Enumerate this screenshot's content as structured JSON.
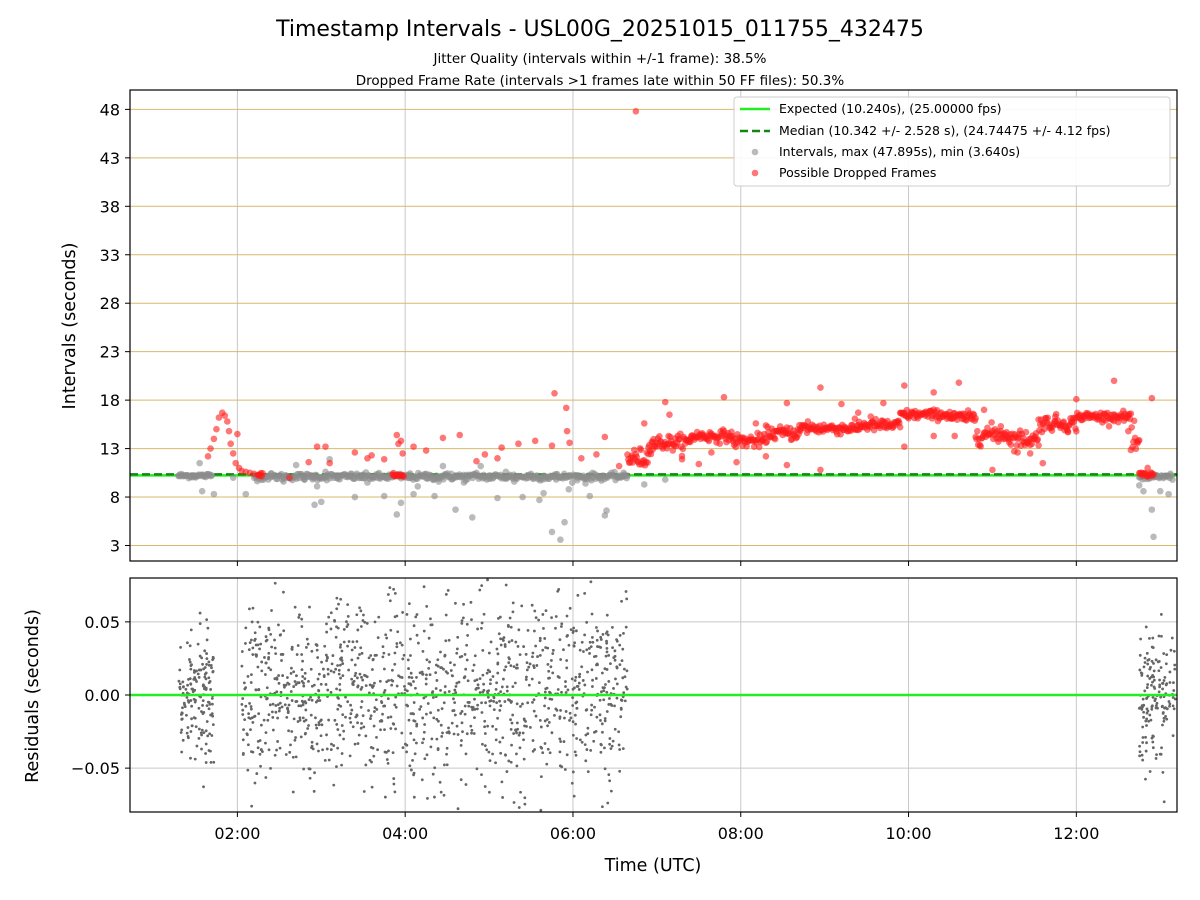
{
  "colors": {
    "expected": "#22ee22",
    "median": "#118811",
    "intervals": "#8c8c8c",
    "dropped": "#ff1a1a",
    "residual_points": "#666666",
    "hgrid_top": "#d9b96e",
    "vgrid": "#c8c8c8"
  },
  "chart_data": {
    "type": "scatter",
    "title": "Timestamp Intervals - USL00G_20251015_011755_432475",
    "subtitle_1": "Jitter Quality (intervals within +/-1 frame): 38.5%",
    "subtitle_2": "Dropped Frame Rate (intervals >1 frames late within 50 FF files): 50.3%",
    "xlabel": "Time (UTC)",
    "x_unit": "hours UTC",
    "xlim": [
      0.72,
      13.2
    ],
    "x_ticks": [
      {
        "value": 2,
        "label": "02:00"
      },
      {
        "value": 4,
        "label": "04:00"
      },
      {
        "value": 6,
        "label": "06:00"
      },
      {
        "value": 8,
        "label": "08:00"
      },
      {
        "value": 10,
        "label": "10:00"
      },
      {
        "value": 12,
        "label": "12:00"
      }
    ],
    "top": {
      "ylabel": "Intervals (seconds)",
      "ylim": [
        1.4,
        50.0
      ],
      "y_ticks": [
        {
          "value": 3,
          "label": "3"
        },
        {
          "value": 8,
          "label": "8"
        },
        {
          "value": 13,
          "label": "13"
        },
        {
          "value": 18,
          "label": "18"
        },
        {
          "value": 23,
          "label": "23"
        },
        {
          "value": 28,
          "label": "28"
        },
        {
          "value": 33,
          "label": "33"
        },
        {
          "value": 38,
          "label": "38"
        },
        {
          "value": 43,
          "label": "43"
        },
        {
          "value": 48,
          "label": "48"
        }
      ],
      "expected": 10.24,
      "median": 10.342,
      "legend": [
        {
          "label": "Expected (10.240s), (25.00000 fps)",
          "kind": "line-solid"
        },
        {
          "label": "Median (10.342 +/- 2.528 s), (24.74475 +/- 4.12 fps)",
          "kind": "line-dashed"
        },
        {
          "label": "Intervals, max (47.895s), min (3.640s)",
          "kind": "dot-gray"
        },
        {
          "label": "Possible Dropped Frames",
          "kind": "dot-red"
        }
      ],
      "intervals": [
        [
          1.3,
          10.2
        ],
        [
          1.35,
          10.2
        ],
        [
          1.4,
          10.2
        ],
        [
          1.45,
          10.2
        ],
        [
          1.5,
          10.2
        ],
        [
          1.55,
          11.5
        ],
        [
          1.58,
          8.6
        ],
        [
          1.6,
          10.2
        ],
        [
          1.65,
          10.2
        ],
        [
          1.72,
          8.3
        ],
        [
          1.95,
          10.0
        ],
        [
          2.1,
          8.3
        ],
        [
          2.25,
          10.1
        ],
        [
          2.4,
          10.4
        ],
        [
          2.55,
          9.6
        ],
        [
          2.7,
          11.3
        ],
        [
          2.8,
          9.8
        ],
        [
          2.9,
          10.2
        ],
        [
          2.92,
          7.2
        ],
        [
          2.95,
          9.1
        ],
        [
          3.0,
          7.5
        ],
        [
          3.05,
          10.6
        ],
        [
          3.1,
          11.9
        ],
        [
          3.2,
          9.9
        ],
        [
          3.35,
          10.4
        ],
        [
          3.4,
          8.0
        ],
        [
          3.5,
          10.3
        ],
        [
          3.55,
          9.5
        ],
        [
          3.7,
          9.9
        ],
        [
          3.75,
          8.1
        ],
        [
          3.85,
          10.3
        ],
        [
          3.9,
          6.2
        ],
        [
          3.95,
          7.4
        ],
        [
          4.05,
          10.3
        ],
        [
          4.1,
          8.3
        ],
        [
          4.15,
          9.1
        ],
        [
          4.25,
          10.4
        ],
        [
          4.35,
          8.1
        ],
        [
          4.4,
          9.6
        ],
        [
          4.45,
          11.2
        ],
        [
          4.55,
          10.4
        ],
        [
          4.6,
          6.7
        ],
        [
          4.7,
          9.5
        ],
        [
          4.8,
          5.9
        ],
        [
          4.85,
          10.5
        ],
        [
          4.9,
          11.2
        ],
        [
          5.0,
          9.9
        ],
        [
          5.1,
          7.9
        ],
        [
          5.2,
          10.6
        ],
        [
          5.3,
          9.6
        ],
        [
          5.4,
          8.0
        ],
        [
          5.5,
          10.4
        ],
        [
          5.6,
          7.7
        ],
        [
          5.65,
          8.4
        ],
        [
          5.75,
          4.4
        ],
        [
          5.8,
          9.8
        ],
        [
          5.85,
          3.6
        ],
        [
          5.9,
          5.4
        ],
        [
          5.95,
          8.8
        ],
        [
          6.05,
          10.0
        ],
        [
          6.15,
          9.4
        ],
        [
          6.2,
          8.1
        ],
        [
          6.38,
          6.1
        ],
        [
          6.4,
          6.6
        ],
        [
          6.55,
          10.2
        ],
        [
          6.6,
          10.2
        ],
        [
          6.65,
          10.2
        ],
        [
          6.85,
          9.3
        ],
        [
          7.1,
          9.8
        ],
        [
          12.75,
          9.2
        ],
        [
          12.8,
          8.6
        ],
        [
          12.9,
          6.7
        ],
        [
          12.92,
          3.9
        ],
        [
          13.0,
          8.6
        ],
        [
          13.1,
          8.3
        ]
      ],
      "intervals_runs": [
        {
          "from": 1.3,
          "to": 1.7,
          "y": 10.2,
          "spread": 0.25
        },
        {
          "from": 2.2,
          "to": 6.65,
          "y": 10.1,
          "spread": 0.35
        },
        {
          "from": 12.75,
          "to": 13.15,
          "y": 10.1,
          "spread": 0.3
        }
      ],
      "dropped": [
        [
          1.65,
          12.2
        ],
        [
          1.68,
          13.0
        ],
        [
          1.72,
          14.0
        ],
        [
          1.75,
          15.0
        ],
        [
          1.78,
          16.2
        ],
        [
          1.82,
          16.7
        ],
        [
          1.85,
          16.4
        ],
        [
          1.88,
          15.8
        ],
        [
          1.9,
          14.8
        ],
        [
          1.92,
          13.5
        ],
        [
          1.95,
          12.5
        ],
        [
          1.98,
          11.5
        ],
        [
          2.0,
          14.5
        ],
        [
          2.02,
          11.0
        ],
        [
          2.05,
          10.7
        ],
        [
          2.1,
          10.6
        ],
        [
          2.15,
          10.5
        ],
        [
          2.2,
          10.4
        ],
        [
          2.25,
          10.3
        ],
        [
          2.62,
          10.0
        ],
        [
          2.85,
          11.6
        ],
        [
          2.95,
          13.2
        ],
        [
          3.05,
          13.2
        ],
        [
          3.1,
          11.5
        ],
        [
          3.4,
          12.6
        ],
        [
          3.55,
          12.0
        ],
        [
          3.6,
          12.3
        ],
        [
          3.75,
          11.9
        ],
        [
          3.9,
          14.4
        ],
        [
          3.92,
          13.5
        ],
        [
          3.95,
          13.8
        ],
        [
          3.97,
          12.5
        ],
        [
          4.1,
          13.2
        ],
        [
          4.25,
          12.8
        ],
        [
          4.45,
          14.1
        ],
        [
          4.65,
          14.4
        ],
        [
          4.85,
          11.7
        ],
        [
          4.95,
          12.4
        ],
        [
          5.1,
          12.0
        ],
        [
          5.15,
          13.1
        ],
        [
          5.35,
          13.5
        ],
        [
          5.55,
          13.8
        ],
        [
          5.75,
          13.3
        ],
        [
          5.78,
          18.7
        ],
        [
          5.92,
          17.2
        ],
        [
          5.93,
          14.8
        ],
        [
          5.96,
          13.6
        ],
        [
          6.1,
          12.0
        ],
        [
          6.28,
          12.4
        ],
        [
          6.38,
          14.2
        ],
        [
          6.55,
          11.2
        ],
        [
          6.75,
          47.8
        ],
        [
          6.85,
          15.6
        ],
        [
          6.95,
          12.9
        ],
        [
          7.1,
          17.8
        ],
        [
          7.15,
          16.5
        ],
        [
          7.3,
          11.9
        ],
        [
          7.5,
          11.4
        ],
        [
          7.65,
          12.6
        ],
        [
          7.8,
          18.3
        ],
        [
          7.95,
          11.6
        ],
        [
          8.18,
          15.6
        ],
        [
          8.3,
          12.2
        ],
        [
          8.55,
          11.3
        ],
        [
          8.55,
          17.7
        ],
        [
          8.8,
          15.8
        ],
        [
          8.95,
          10.8
        ],
        [
          8.95,
          19.3
        ],
        [
          9.2,
          17.6
        ],
        [
          9.4,
          16.7
        ],
        [
          9.55,
          16.3
        ],
        [
          9.7,
          17.7
        ],
        [
          9.95,
          19.5
        ],
        [
          9.95,
          13.2
        ],
        [
          10.3,
          18.8
        ],
        [
          10.3,
          14.3
        ],
        [
          10.55,
          14.3
        ],
        [
          10.6,
          19.8
        ],
        [
          10.9,
          17.0
        ],
        [
          11.0,
          10.8
        ],
        [
          11.1,
          15.3
        ],
        [
          11.3,
          12.6
        ],
        [
          11.45,
          12.5
        ],
        [
          11.6,
          11.5
        ],
        [
          11.75,
          16.3
        ],
        [
          11.9,
          14.7
        ],
        [
          12.0,
          18.1
        ],
        [
          12.45,
          20.0
        ],
        [
          12.62,
          14.8
        ],
        [
          12.85,
          11.0
        ],
        [
          12.9,
          18.2
        ]
      ],
      "dropped_runs": [
        {
          "from": 2.25,
          "to": 2.3,
          "y": 10.3,
          "spread": 0.2
        },
        {
          "from": 3.85,
          "to": 3.98,
          "y": 10.2,
          "spread": 0.2
        },
        {
          "from": 6.65,
          "to": 6.9,
          "y": 12.0,
          "spread": 1.0
        },
        {
          "from": 6.9,
          "to": 7.4,
          "y": 13.6,
          "spread": 0.8
        },
        {
          "from": 7.4,
          "to": 7.9,
          "y": 14.3,
          "spread": 0.6
        },
        {
          "from": 7.9,
          "to": 8.3,
          "y": 13.8,
          "spread": 0.7
        },
        {
          "from": 8.3,
          "to": 8.7,
          "y": 14.6,
          "spread": 0.7
        },
        {
          "from": 8.7,
          "to": 9.4,
          "y": 15.1,
          "spread": 0.6
        },
        {
          "from": 9.4,
          "to": 9.9,
          "y": 15.4,
          "spread": 0.6
        },
        {
          "from": 9.9,
          "to": 10.5,
          "y": 16.5,
          "spread": 0.5
        },
        {
          "from": 10.5,
          "to": 10.8,
          "y": 16.2,
          "spread": 0.6
        },
        {
          "from": 10.8,
          "to": 11.2,
          "y": 14.5,
          "spread": 1.0
        },
        {
          "from": 11.2,
          "to": 11.55,
          "y": 14.0,
          "spread": 0.9
        },
        {
          "from": 11.55,
          "to": 12.0,
          "y": 15.6,
          "spread": 0.8
        },
        {
          "from": 12.0,
          "to": 12.65,
          "y": 16.3,
          "spread": 0.5
        },
        {
          "from": 12.65,
          "to": 12.75,
          "y": 13.5,
          "spread": 1.5
        },
        {
          "from": 12.75,
          "to": 12.92,
          "y": 10.3,
          "spread": 0.3
        }
      ]
    },
    "bottom": {
      "ylabel": "Residuals (seconds)",
      "ylim": [
        -0.08,
        0.08
      ],
      "y_ticks": [
        {
          "value": 0.05,
          "label": "0.05"
        },
        {
          "value": 0.0,
          "label": "0.00"
        },
        {
          "value": -0.05,
          "label": "−0.05"
        }
      ],
      "zero_line": 0.0,
      "residual_clusters": [
        {
          "from": 1.3,
          "to": 1.72,
          "n": 160,
          "sd": 0.022
        },
        {
          "from": 2.05,
          "to": 6.65,
          "n": 1250,
          "sd": 0.033
        },
        {
          "from": 12.75,
          "to": 13.18,
          "n": 150,
          "sd": 0.022
        }
      ]
    }
  }
}
